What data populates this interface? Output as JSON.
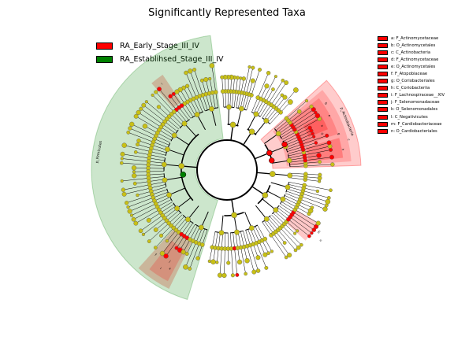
{
  "title": "Significantly Represented Taxa",
  "groups": [
    {
      "label": "RA_Early_Stage_III_IV",
      "color": "#ff0000"
    },
    {
      "label": "RA_Establihsed_Stage_III_IV",
      "color": "#008000"
    }
  ],
  "colors": {
    "node_default": "#c8c016",
    "branch": "#000000",
    "red_shade": "#ff0000",
    "green_shade": "#008000"
  },
  "shaded_labels": {
    "firmicutes": "p_Firmicutes",
    "actinobacteria": "p_Actinobacteria",
    "label_f": "f",
    "label_b": "b",
    "label_n": "n",
    "label_m": "m",
    "label_e": "e",
    "label_c": "c",
    "label_j": "j",
    "label_g": "g",
    "label_h": "h",
    "label_k": "k",
    "label_l": "l",
    "label_i": "i",
    "label_a": "a",
    "label_d": "d"
  },
  "clades": [
    {
      "label": "a: F_Actinomycetaceae",
      "color": "#ff0000"
    },
    {
      "label": "b: O_Actinomycetales",
      "color": "#ff0000"
    },
    {
      "label": "c: C_Actinobacteria",
      "color": "#ff0000"
    },
    {
      "label": "d: F_Actinomycetaceae",
      "color": "#ff0000"
    },
    {
      "label": "e: O_Actinomycetales",
      "color": "#ff0000"
    },
    {
      "label": "f: F_Atopobiaceae",
      "color": "#ff0000"
    },
    {
      "label": "g: O_Coriobacteriales",
      "color": "#ff0000"
    },
    {
      "label": "h: C_Coriobacteriia",
      "color": "#ff0000"
    },
    {
      "label": "i: F_Lachnospiraceae__XIV",
      "color": "#ff0000"
    },
    {
      "label": "j: F_Selenomonadaceae",
      "color": "#ff0000"
    },
    {
      "label": "k: O_Selenomonadales",
      "color": "#ff0000"
    },
    {
      "label": "l: C_Negativicutes",
      "color": "#ff0000"
    },
    {
      "label": "m: F_Cardiobacteriaceae",
      "color": "#ff0000"
    },
    {
      "label": "n: O_Cardiobacteriales",
      "color": "#ff0000"
    }
  ]
}
